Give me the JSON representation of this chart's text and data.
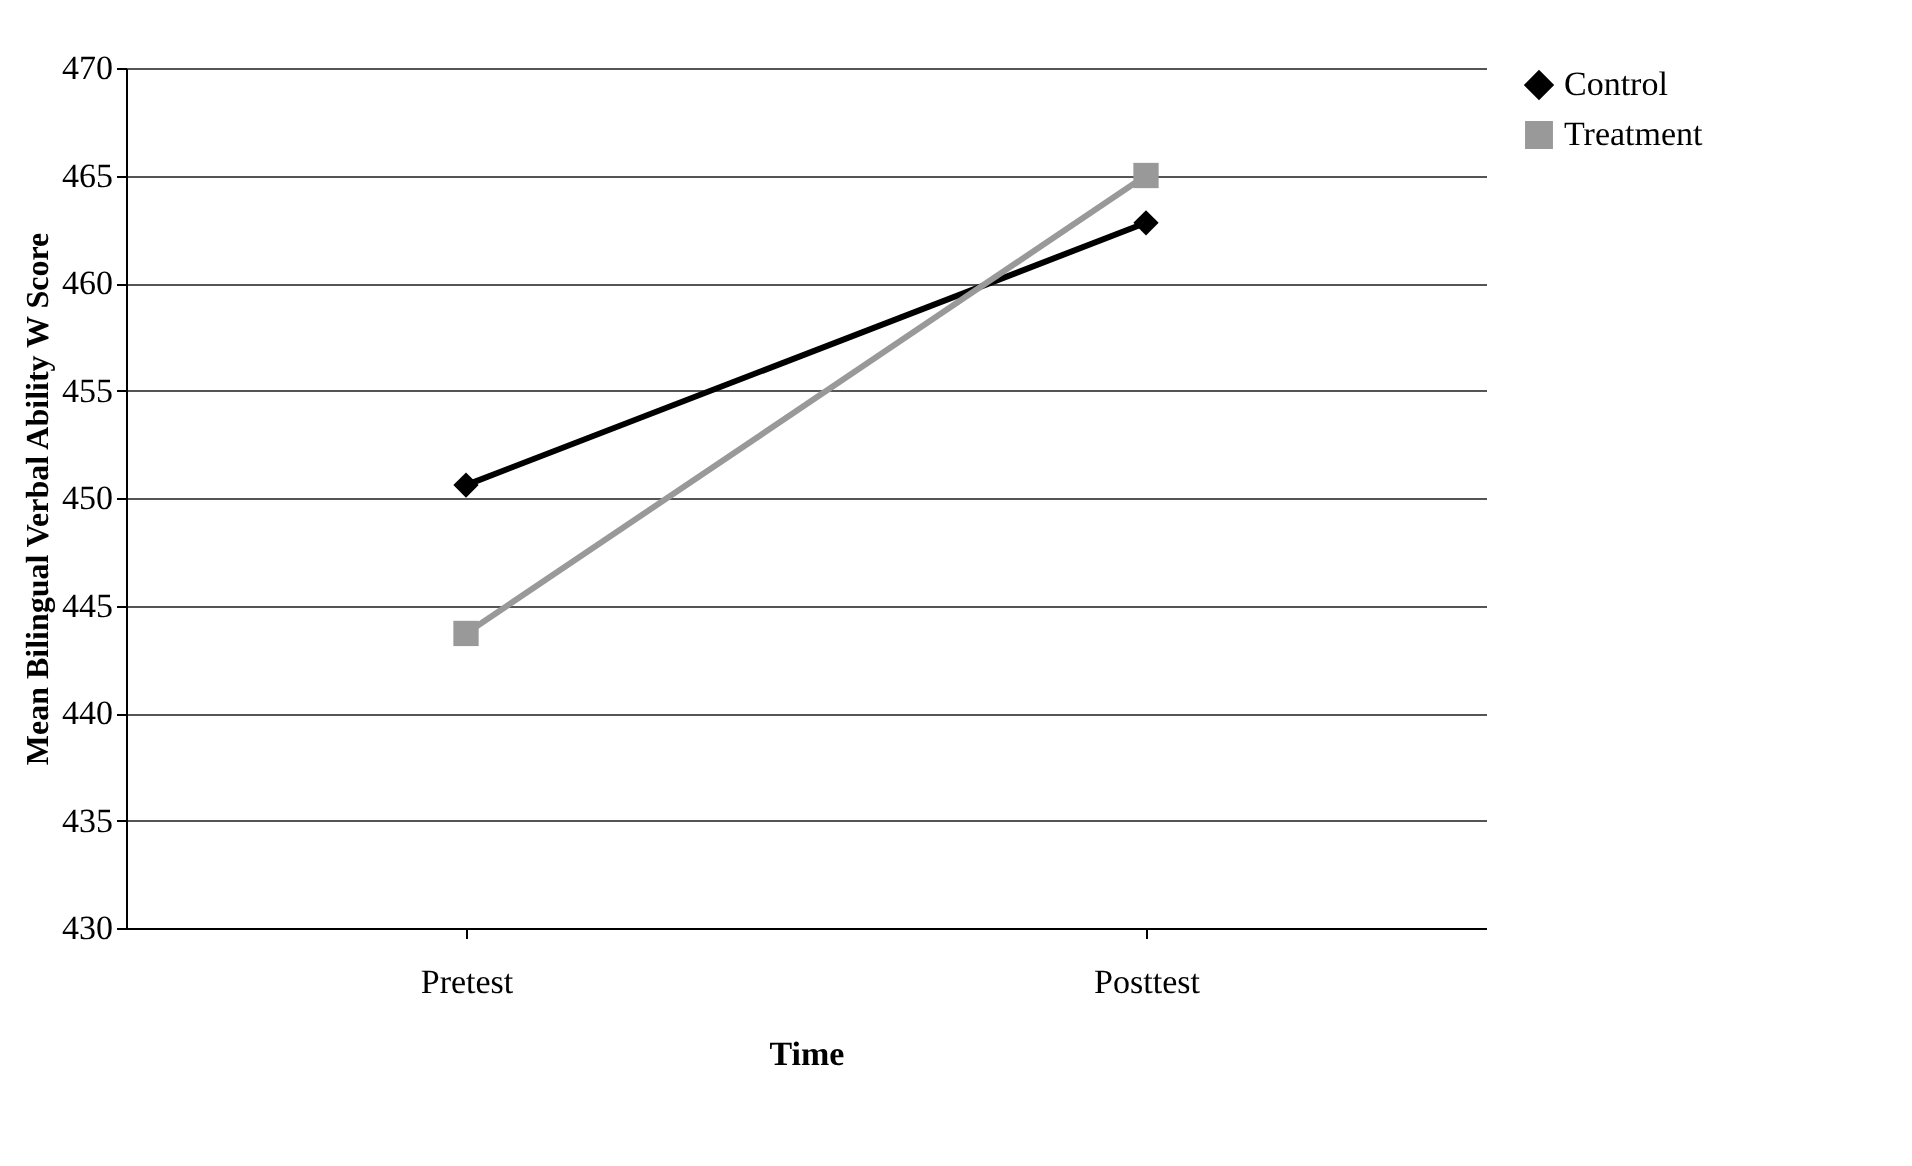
{
  "chart_data": {
    "type": "line",
    "xlabel": "Time",
    "ylabel": "Mean Bilingual Verbal Ability W Score",
    "categories": [
      "Pretest",
      "Posttest"
    ],
    "series": [
      {
        "name": "Control",
        "color": "#000000",
        "values": [
          450.6,
          462.8
        ],
        "marker": "diamond"
      },
      {
        "name": "Treatment",
        "color": "#999999",
        "values": [
          443.7,
          465.0
        ],
        "marker": "square"
      }
    ],
    "ylim": [
      430,
      470
    ],
    "yticks": [
      430,
      435,
      440,
      445,
      450,
      455,
      460,
      465,
      470
    ],
    "grid": "y",
    "legend": "right",
    "line_style": "solid"
  }
}
